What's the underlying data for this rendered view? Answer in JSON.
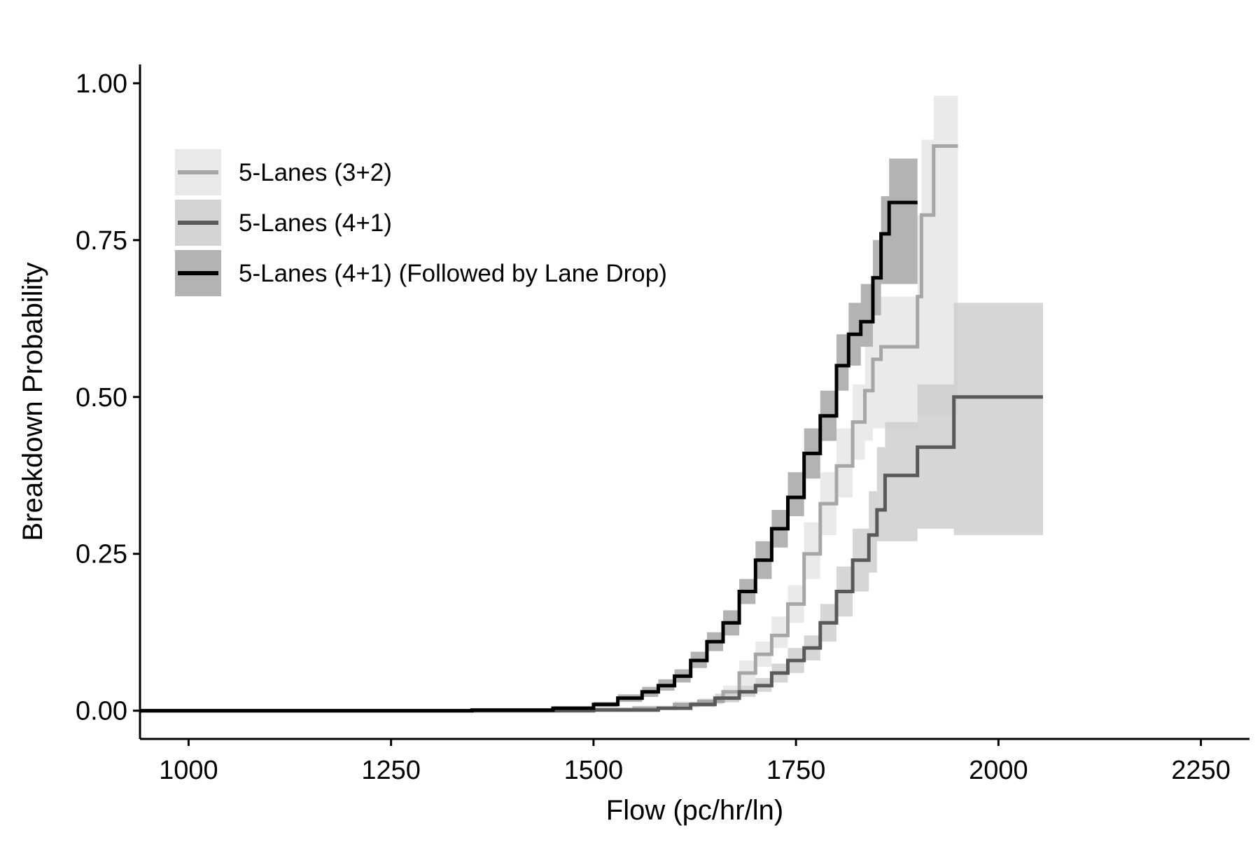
{
  "chart_data": {
    "type": "line",
    "title": "",
    "xlabel": "Flow (pc/hr/ln)",
    "ylabel": "Breakdown Probability",
    "xlim": [
      940,
      2310
    ],
    "ylim": [
      -0.045,
      1.03
    ],
    "x_ticks": [
      1000,
      1250,
      1500,
      1750,
      2000,
      2250
    ],
    "y_ticks": [
      0,
      0.25,
      0.5,
      0.75,
      1.0
    ],
    "x_tick_labels": [
      "1000",
      "1250",
      "1500",
      "1750",
      "2000",
      "2250"
    ],
    "y_tick_labels": [
      "0.00",
      "0.25",
      "0.50",
      "0.75",
      "1.00"
    ],
    "grid": false,
    "legend_position": "top-left",
    "style": "step function with shaded confidence bands",
    "series": [
      {
        "name": "5-Lanes (3+2)",
        "line_color": "#a6a6a6",
        "band_color": "#e5e5e5",
        "points": [
          [
            940,
            0
          ],
          [
            1450,
            0.002
          ],
          [
            1550,
            0.004
          ],
          [
            1600,
            0.01
          ],
          [
            1630,
            0.015
          ],
          [
            1660,
            0.03
          ],
          [
            1680,
            0.06
          ],
          [
            1700,
            0.09
          ],
          [
            1720,
            0.12
          ],
          [
            1740,
            0.17
          ],
          [
            1760,
            0.25
          ],
          [
            1780,
            0.33
          ],
          [
            1800,
            0.39
          ],
          [
            1820,
            0.46
          ],
          [
            1835,
            0.51
          ],
          [
            1845,
            0.56
          ],
          [
            1855,
            0.58
          ],
          [
            1890,
            0.58
          ],
          [
            1900,
            0.66
          ],
          [
            1905,
            0.79
          ],
          [
            1915,
            0.79
          ],
          [
            1920,
            0.9
          ],
          [
            1950,
            0.9
          ]
        ],
        "ci_lower": [
          [
            940,
            0
          ],
          [
            1450,
            0
          ],
          [
            1550,
            0.002
          ],
          [
            1600,
            0.005
          ],
          [
            1630,
            0.01
          ],
          [
            1660,
            0.02
          ],
          [
            1680,
            0.04
          ],
          [
            1700,
            0.07
          ],
          [
            1720,
            0.1
          ],
          [
            1740,
            0.14
          ],
          [
            1760,
            0.21
          ],
          [
            1780,
            0.28
          ],
          [
            1800,
            0.34
          ],
          [
            1820,
            0.4
          ],
          [
            1835,
            0.43
          ],
          [
            1845,
            0.45
          ],
          [
            1890,
            0.45
          ],
          [
            1900,
            0.47
          ],
          [
            1950,
            0.47
          ]
        ],
        "ci_upper": [
          [
            940,
            0.001
          ],
          [
            1450,
            0.004
          ],
          [
            1550,
            0.008
          ],
          [
            1600,
            0.015
          ],
          [
            1630,
            0.02
          ],
          [
            1660,
            0.04
          ],
          [
            1680,
            0.08
          ],
          [
            1700,
            0.11
          ],
          [
            1720,
            0.15
          ],
          [
            1740,
            0.2
          ],
          [
            1760,
            0.3
          ],
          [
            1780,
            0.38
          ],
          [
            1800,
            0.45
          ],
          [
            1820,
            0.52
          ],
          [
            1835,
            0.58
          ],
          [
            1845,
            0.63
          ],
          [
            1855,
            0.66
          ],
          [
            1890,
            0.66
          ],
          [
            1900,
            0.79
          ],
          [
            1905,
            0.91
          ],
          [
            1920,
            0.98
          ],
          [
            1950,
            0.98
          ]
        ]
      },
      {
        "name": "5-Lanes (4+1)",
        "line_color": "#595959",
        "band_color": "#cccccc",
        "points": [
          [
            940,
            0
          ],
          [
            1500,
            0.001
          ],
          [
            1580,
            0.004
          ],
          [
            1620,
            0.01
          ],
          [
            1650,
            0.02
          ],
          [
            1680,
            0.03
          ],
          [
            1700,
            0.04
          ],
          [
            1720,
            0.06
          ],
          [
            1740,
            0.08
          ],
          [
            1760,
            0.1
          ],
          [
            1780,
            0.14
          ],
          [
            1800,
            0.19
          ],
          [
            1820,
            0.24
          ],
          [
            1840,
            0.28
          ],
          [
            1850,
            0.32
          ],
          [
            1860,
            0.375
          ],
          [
            1895,
            0.375
          ],
          [
            1900,
            0.42
          ],
          [
            1940,
            0.42
          ],
          [
            1945,
            0.5
          ],
          [
            2055,
            0.5
          ]
        ],
        "ci_lower": [
          [
            940,
            0
          ],
          [
            1500,
            0
          ],
          [
            1580,
            0.002
          ],
          [
            1620,
            0.006
          ],
          [
            1650,
            0.013
          ],
          [
            1680,
            0.022
          ],
          [
            1700,
            0.03
          ],
          [
            1720,
            0.045
          ],
          [
            1740,
            0.06
          ],
          [
            1760,
            0.08
          ],
          [
            1780,
            0.11
          ],
          [
            1800,
            0.15
          ],
          [
            1820,
            0.19
          ],
          [
            1840,
            0.22
          ],
          [
            1850,
            0.27
          ],
          [
            1895,
            0.27
          ],
          [
            1900,
            0.29
          ],
          [
            1940,
            0.29
          ],
          [
            1945,
            0.28
          ],
          [
            2055,
            0.28
          ]
        ],
        "ci_upper": [
          [
            940,
            0.001
          ],
          [
            1500,
            0.002
          ],
          [
            1580,
            0.006
          ],
          [
            1620,
            0.014
          ],
          [
            1650,
            0.027
          ],
          [
            1680,
            0.04
          ],
          [
            1700,
            0.052
          ],
          [
            1720,
            0.075
          ],
          [
            1740,
            0.1
          ],
          [
            1760,
            0.12
          ],
          [
            1780,
            0.17
          ],
          [
            1800,
            0.23
          ],
          [
            1820,
            0.29
          ],
          [
            1840,
            0.35
          ],
          [
            1850,
            0.42
          ],
          [
            1860,
            0.46
          ],
          [
            1895,
            0.46
          ],
          [
            1900,
            0.52
          ],
          [
            1940,
            0.52
          ],
          [
            1945,
            0.65
          ],
          [
            2055,
            0.65
          ]
        ]
      },
      {
        "name": "5-Lanes (4+1) (Followed by Lane Drop)",
        "line_color": "#000000",
        "band_color": "#a6a6a6",
        "points": [
          [
            940,
            0
          ],
          [
            1350,
            0.001
          ],
          [
            1450,
            0.004
          ],
          [
            1500,
            0.01
          ],
          [
            1530,
            0.02
          ],
          [
            1560,
            0.03
          ],
          [
            1580,
            0.04
          ],
          [
            1600,
            0.055
          ],
          [
            1620,
            0.08
          ],
          [
            1640,
            0.11
          ],
          [
            1660,
            0.14
          ],
          [
            1680,
            0.19
          ],
          [
            1700,
            0.24
          ],
          [
            1720,
            0.29
          ],
          [
            1740,
            0.34
          ],
          [
            1760,
            0.41
          ],
          [
            1780,
            0.47
          ],
          [
            1800,
            0.55
          ],
          [
            1815,
            0.6
          ],
          [
            1830,
            0.62
          ],
          [
            1845,
            0.69
          ],
          [
            1855,
            0.76
          ],
          [
            1865,
            0.81
          ],
          [
            1900,
            0.81
          ]
        ],
        "ci_lower": [
          [
            940,
            0
          ],
          [
            1350,
            0
          ],
          [
            1450,
            0.002
          ],
          [
            1500,
            0.006
          ],
          [
            1530,
            0.014
          ],
          [
            1560,
            0.022
          ],
          [
            1580,
            0.032
          ],
          [
            1600,
            0.045
          ],
          [
            1620,
            0.068
          ],
          [
            1640,
            0.095
          ],
          [
            1660,
            0.12
          ],
          [
            1680,
            0.17
          ],
          [
            1700,
            0.21
          ],
          [
            1720,
            0.26
          ],
          [
            1740,
            0.31
          ],
          [
            1760,
            0.37
          ],
          [
            1780,
            0.43
          ],
          [
            1800,
            0.51
          ],
          [
            1815,
            0.55
          ],
          [
            1830,
            0.58
          ],
          [
            1845,
            0.63
          ],
          [
            1855,
            0.68
          ],
          [
            1900,
            0.68
          ]
        ],
        "ci_upper": [
          [
            940,
            0.001
          ],
          [
            1350,
            0.003
          ],
          [
            1450,
            0.007
          ],
          [
            1500,
            0.014
          ],
          [
            1530,
            0.026
          ],
          [
            1560,
            0.038
          ],
          [
            1580,
            0.05
          ],
          [
            1600,
            0.066
          ],
          [
            1620,
            0.094
          ],
          [
            1640,
            0.125
          ],
          [
            1660,
            0.16
          ],
          [
            1680,
            0.21
          ],
          [
            1700,
            0.27
          ],
          [
            1720,
            0.32
          ],
          [
            1740,
            0.38
          ],
          [
            1760,
            0.45
          ],
          [
            1780,
            0.51
          ],
          [
            1800,
            0.6
          ],
          [
            1815,
            0.65
          ],
          [
            1830,
            0.68
          ],
          [
            1845,
            0.75
          ],
          [
            1855,
            0.82
          ],
          [
            1865,
            0.88
          ],
          [
            1900,
            0.88
          ]
        ]
      }
    ]
  }
}
